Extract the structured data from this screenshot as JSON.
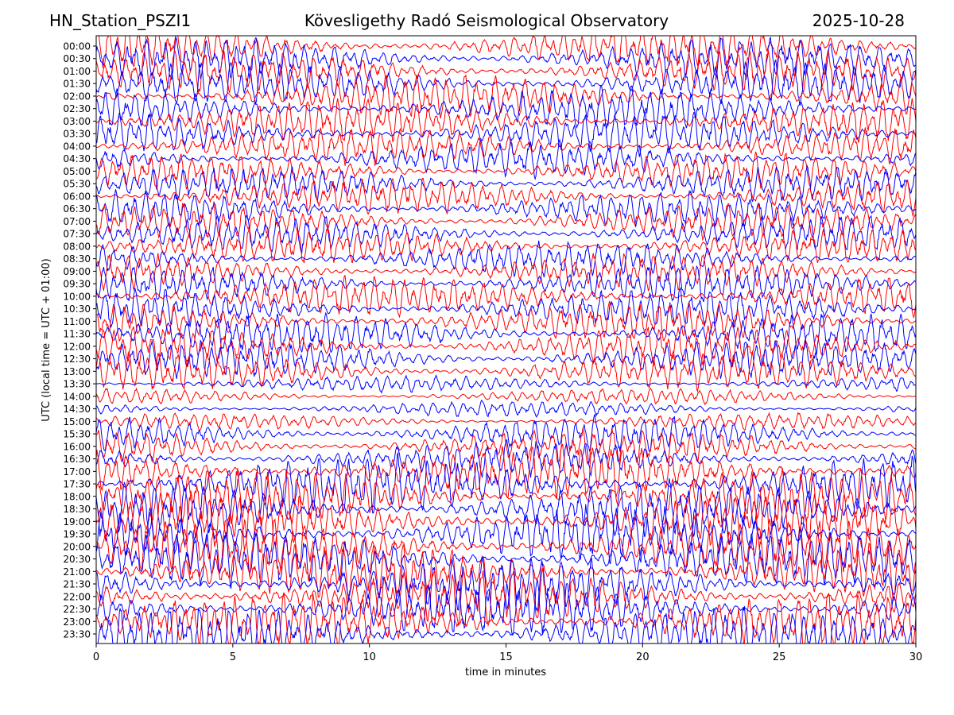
{
  "header": {
    "station": "HN_Station_PSZI1",
    "observatory": "Kövesligethy Radó Seismological Observatory",
    "date": "2025-10-28"
  },
  "chart_data": {
    "type": "line",
    "chart_kind": "helicorder",
    "xlabel": "time in minutes",
    "ylabel": "UTC (local time = UTC + 01:00)",
    "xlim": [
      0,
      30
    ],
    "x_ticks": [
      0,
      5,
      10,
      15,
      20,
      25,
      30
    ],
    "y_tick_labels": [
      "00:00",
      "00:30",
      "01:00",
      "01:30",
      "02:00",
      "02:30",
      "03:00",
      "03:30",
      "04:00",
      "04:30",
      "05:00",
      "05:30",
      "06:00",
      "06:30",
      "07:00",
      "07:30",
      "08:00",
      "08:30",
      "09:00",
      "09:30",
      "10:00",
      "10:30",
      "11:00",
      "11:30",
      "12:00",
      "12:30",
      "13:00",
      "13:30",
      "14:00",
      "14:30",
      "15:00",
      "15:30",
      "16:00",
      "16:30",
      "17:00",
      "17:30",
      "18:00",
      "18:30",
      "19:00",
      "19:30",
      "20:00",
      "20:30",
      "21:00",
      "21:30",
      "22:00",
      "22:30",
      "23:00",
      "23:30"
    ],
    "series_colors": [
      "#ff0000",
      "#0000ff"
    ],
    "grid": false,
    "legend": "none"
  }
}
